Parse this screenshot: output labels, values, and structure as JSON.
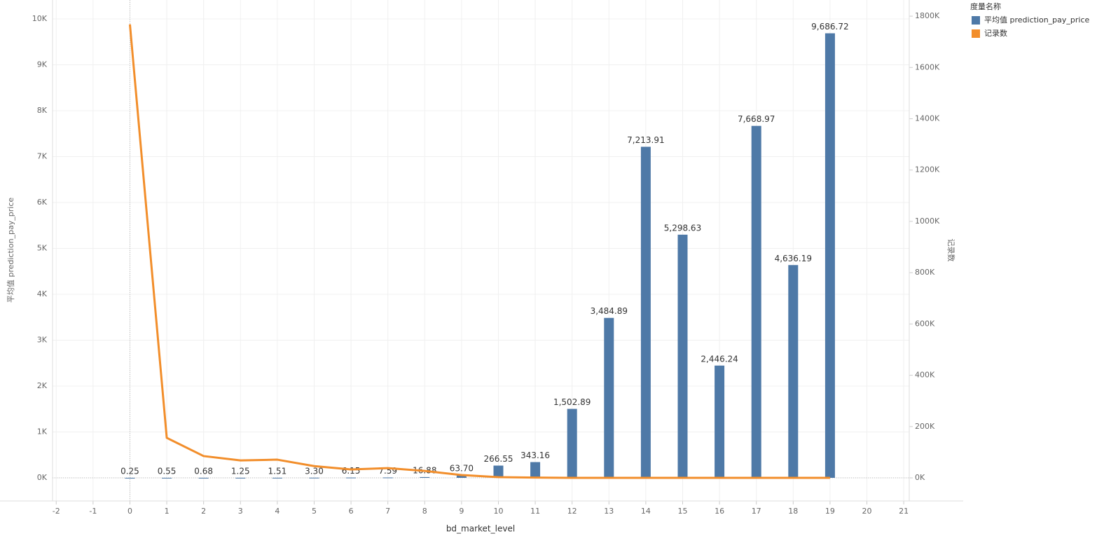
{
  "chart_data": {
    "type": "combo",
    "x": [
      0,
      1,
      2,
      3,
      4,
      5,
      6,
      7,
      8,
      9,
      10,
      11,
      12,
      13,
      14,
      15,
      16,
      17,
      18,
      19
    ],
    "series": [
      {
        "name": "平均值 prediction_pay_price",
        "type": "bar",
        "color": "#4e79a7",
        "values": [
          0.25,
          0.55,
          0.68,
          1.25,
          1.51,
          3.3,
          6.15,
          7.59,
          16.88,
          63.7,
          266.55,
          343.16,
          1502.89,
          3484.89,
          7213.91,
          5298.63,
          2446.24,
          7668.97,
          4636.19,
          9686.72
        ],
        "value_labels": [
          "0.25",
          "0.55",
          "0.68",
          "1.25",
          "1.51",
          "3.30",
          "6.15",
          "7.59",
          "16.88",
          "63.70",
          "266.55",
          "343.16",
          "1,502.89",
          "3,484.89",
          "7,213.91",
          "5,298.63",
          "2,446.24",
          "7,668.97",
          "4,636.19",
          "9,686.72"
        ]
      },
      {
        "name": "记录数",
        "type": "line",
        "axis": "y2",
        "color": "#f28e2b",
        "values": [
          1768000,
          156000,
          85000,
          68000,
          71000,
          46000,
          33000,
          38000,
          27000,
          11000,
          3000,
          1000,
          0,
          0,
          0,
          0,
          0,
          0,
          0,
          0
        ]
      }
    ],
    "xlabel": "bd_market_level",
    "ylabel": "平均值 prediction_pay_price",
    "y2label": "记录数",
    "legend_title": "度量名称",
    "xlim": [
      -2.1,
      21.15
    ],
    "xticks": [
      -2,
      -1,
      0,
      1,
      2,
      3,
      4,
      5,
      6,
      7,
      8,
      9,
      10,
      11,
      12,
      13,
      14,
      15,
      16,
      17,
      18,
      19,
      20,
      21
    ],
    "ylim": [
      -504,
      10412
    ],
    "yticks": [
      {
        "value": 0,
        "label": "0K"
      },
      {
        "value": 1000,
        "label": "1K"
      },
      {
        "value": 2000,
        "label": "2K"
      },
      {
        "value": 3000,
        "label": "3K"
      },
      {
        "value": 4000,
        "label": "4K"
      },
      {
        "value": 5000,
        "label": "5K"
      },
      {
        "value": 6000,
        "label": "6K"
      },
      {
        "value": 7000,
        "label": "7K"
      },
      {
        "value": 8000,
        "label": "8K"
      },
      {
        "value": 9000,
        "label": "9K"
      },
      {
        "value": 10000,
        "label": "10K"
      }
    ],
    "y2lim": [
      -90000,
      1863000
    ],
    "y2ticks": [
      {
        "value": 0,
        "label": "0K"
      },
      {
        "value": 200000,
        "label": "200K"
      },
      {
        "value": 400000,
        "label": "400K"
      },
      {
        "value": 600000,
        "label": "600K"
      },
      {
        "value": 800000,
        "label": "800K"
      },
      {
        "value": 1000000,
        "label": "1000K"
      },
      {
        "value": 1200000,
        "label": "1200K"
      },
      {
        "value": 1400000,
        "label": "1400K"
      },
      {
        "value": 1600000,
        "label": "1600K"
      },
      {
        "value": 1800000,
        "label": "1800K"
      }
    ],
    "grid": true
  }
}
